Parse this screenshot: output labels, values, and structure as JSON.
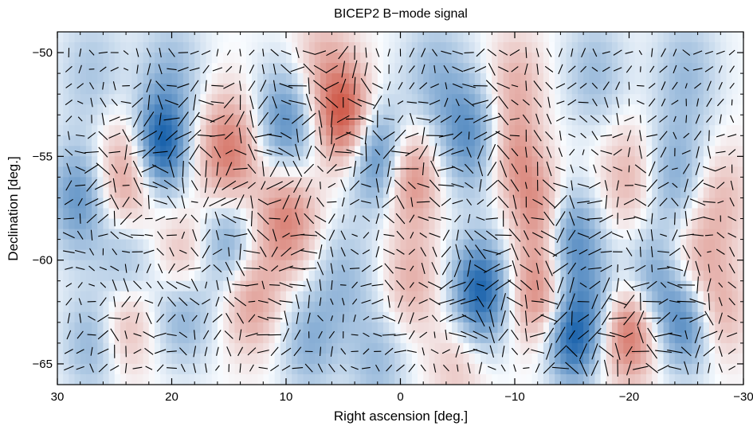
{
  "chart_data": {
    "type": "heatmap",
    "title": "BICEP2 B−mode signal",
    "xlabel": "Right ascension [deg.]",
    "ylabel": "Declination [deg.]",
    "xlim": [
      30,
      -30
    ],
    "ylim": [
      -66,
      -49
    ],
    "xticks": [
      30,
      20,
      10,
      0,
      -10,
      -20,
      -30
    ],
    "xtick_labels": [
      "30",
      "20",
      "10",
      "0",
      "−10",
      "−20",
      "−30"
    ],
    "yticks": [
      -50,
      -55,
      -60,
      -65
    ],
    "ytick_labels": [
      "−50",
      "−55",
      "−60",
      "−65"
    ],
    "grid": false,
    "colors": {
      "positive": "#d6604d",
      "negative": "#2166ac",
      "zero": "#ffffff",
      "vectors": "#000000"
    },
    "features": [
      {
        "ra": 28,
        "dec": -57,
        "amp": -0.55,
        "sigma": 1.9
      },
      {
        "ra": 24,
        "dec": -56,
        "amp": 0.55,
        "sigma": 2.0
      },
      {
        "ra": 21,
        "dec": -54.5,
        "amp": -0.9,
        "sigma": 1.7
      },
      {
        "ra": 15,
        "dec": -54.8,
        "amp": 0.7,
        "sigma": 1.9
      },
      {
        "ra": 10,
        "dec": -53.5,
        "amp": -0.6,
        "sigma": 2.0
      },
      {
        "ra": 5,
        "dec": -53,
        "amp": 0.9,
        "sigma": 1.7
      },
      {
        "ra": 2,
        "dec": -55,
        "amp": -0.65,
        "sigma": 1.8
      },
      {
        "ra": -1,
        "dec": -56,
        "amp": 0.6,
        "sigma": 1.7
      },
      {
        "ra": -6,
        "dec": -54,
        "amp": -0.55,
        "sigma": 2.0
      },
      {
        "ra": -10,
        "dec": -55,
        "amp": 0.45,
        "sigma": 1.6
      },
      {
        "ra": -12,
        "dec": -57.5,
        "amp": 0.5,
        "sigma": 1.6
      },
      {
        "ra": -15,
        "dec": -59,
        "amp": -0.55,
        "sigma": 1.8
      },
      {
        "ra": -20,
        "dec": -56,
        "amp": 0.35,
        "sigma": 1.8
      },
      {
        "ra": -24,
        "dec": -56,
        "amp": -0.4,
        "sigma": 2.0
      },
      {
        "ra": -28,
        "dec": -57,
        "amp": 0.3,
        "sigma": 1.8
      },
      {
        "ra": 10,
        "dec": -58,
        "amp": 0.65,
        "sigma": 1.9
      },
      {
        "ra": 15,
        "dec": -59,
        "amp": -0.45,
        "sigma": 1.8
      },
      {
        "ra": 19,
        "dec": -60,
        "amp": 0.35,
        "sigma": 1.6
      },
      {
        "ra": 24,
        "dec": -60,
        "amp": -0.35,
        "sigma": 1.7
      },
      {
        "ra": 5,
        "dec": -61,
        "amp": -0.3,
        "sigma": 2.0
      },
      {
        "ra": -1,
        "dec": -61,
        "amp": 0.35,
        "sigma": 1.7
      },
      {
        "ra": -7,
        "dec": -61.5,
        "amp": -0.85,
        "sigma": 1.8
      },
      {
        "ra": -12,
        "dec": -61.5,
        "amp": 0.6,
        "sigma": 1.7
      },
      {
        "ra": -17,
        "dec": -62,
        "amp": -0.3,
        "sigma": 1.8
      },
      {
        "ra": -22,
        "dec": -61,
        "amp": -0.4,
        "sigma": 1.7
      },
      {
        "ra": -26,
        "dec": -60,
        "amp": 0.35,
        "sigma": 1.7
      },
      {
        "ra": 13,
        "dec": -62,
        "amp": 0.45,
        "sigma": 1.7
      },
      {
        "ra": 8,
        "dec": -64,
        "amp": -0.35,
        "sigma": 1.8
      },
      {
        "ra": 19,
        "dec": -62.5,
        "amp": -0.4,
        "sigma": 1.8
      },
      {
        "ra": 24,
        "dec": -63,
        "amp": 0.35,
        "sigma": 1.7
      },
      {
        "ra": -15,
        "dec": -63.8,
        "amp": -0.75,
        "sigma": 1.6
      },
      {
        "ra": -20,
        "dec": -63.5,
        "amp": 0.75,
        "sigma": 1.6
      },
      {
        "ra": -25,
        "dec": -63,
        "amp": -0.6,
        "sigma": 1.7
      },
      {
        "ra": -28,
        "dec": -62.5,
        "amp": 0.35,
        "sigma": 1.6
      },
      {
        "ra": 27,
        "dec": -64,
        "amp": -0.35,
        "sigma": 1.8
      },
      {
        "ra": 2,
        "dec": -65,
        "amp": -0.3,
        "sigma": 1.8
      },
      {
        "ra": -5,
        "dec": -65,
        "amp": 0.25,
        "sigma": 1.7
      },
      {
        "ra": 20,
        "dec": -51,
        "amp": -0.3,
        "sigma": 2.0
      },
      {
        "ra": 7,
        "dec": -50.5,
        "amp": 0.3,
        "sigma": 1.8
      },
      {
        "ra": -3,
        "dec": -51,
        "amp": -0.3,
        "sigma": 2.0
      },
      {
        "ra": -10,
        "dec": -51.5,
        "amp": 0.35,
        "sigma": 1.7
      },
      {
        "ra": -17,
        "dec": -51,
        "amp": -0.3,
        "sigma": 1.9
      },
      {
        "ra": -25,
        "dec": -51,
        "amp": -0.3,
        "sigma": 2.0
      },
      {
        "ra": 27,
        "dec": -51,
        "amp": -0.25,
        "sigma": 2.0
      }
    ]
  }
}
